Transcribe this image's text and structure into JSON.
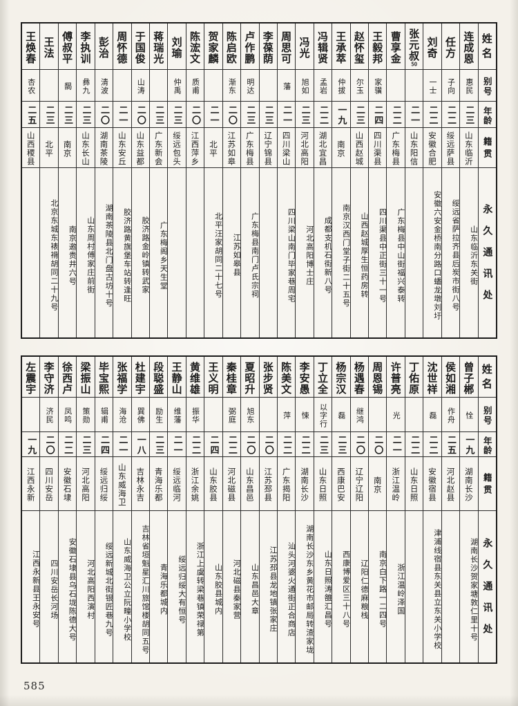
{
  "page": {
    "number": "585"
  },
  "headers": {
    "name": "姓名",
    "alias": "别号",
    "age": "年龄",
    "native_place": "籍贯",
    "address": "永久通讯处"
  },
  "tables": [
    {
      "id": "top",
      "entries": [
        {
          "name": "连成恩",
          "alias": "惠民",
          "age": "二三",
          "place": "山东临沂",
          "address": "山东临沂东关街"
        },
        {
          "name": "任方",
          "alias": "子向",
          "age": "二二",
          "place": "绥远萨县",
          "address": "绥远省萨拉齐县后炭市街八号"
        },
        {
          "name": "刘奇",
          "alias": "一士",
          "age": "二二",
          "place": "安徽合肥",
          "address": "安徽六安金桥南分路口蟠龙墩刘圩"
        },
        {
          "name": "张元叔",
          "annotation": "50",
          "alias": "",
          "age": "二一",
          "place": "山东阳信",
          "address": ""
        },
        {
          "name": "曹享金",
          "alias": "",
          "age": "二二",
          "place": "广东梅县",
          "address": "广东梅县中山街福兴泰转"
        },
        {
          "name": "王毅邦",
          "alias": "家骥",
          "age": "二四",
          "place": "四川渠县",
          "address": "四川渠县中正街三十一号"
        },
        {
          "name": "赵怀玺",
          "alias": "尔玉",
          "age": "二三",
          "place": "山西赵城",
          "address": "山西赵城厚生恒药房转"
        },
        {
          "name": "王承萃",
          "alias": "仲拔",
          "age": "一九",
          "place": "南京",
          "address": "南京汉西门堂子街二十五号"
        },
        {
          "name": "冯辑贤",
          "alias": "孟岩",
          "age": "二二",
          "place": "湖北宜昌",
          "address": "成都支机石街新八号"
        },
        {
          "name": "冯光",
          "alias": "旭如",
          "age": "二三",
          "place": "河北高阳",
          "address": "河北高阳博士庄"
        },
        {
          "name": "周思可",
          "alias": "藩",
          "age": "二一",
          "place": "四川梁山",
          "address": "四川梁山南门毕家巷周宅"
        },
        {
          "name": "李葆荫",
          "alias": "",
          "age": "二三",
          "place": "辽宁锦县",
          "address": ""
        },
        {
          "name": "卢作鹏",
          "alias": "明达",
          "age": "二三",
          "place": "广东梅县",
          "address": "广东梅县南门卢氏宗祠"
        },
        {
          "name": "陈启欧",
          "alias": "渐东",
          "age": "二〇",
          "place": "江苏如皋",
          "address": "江苏如皋县"
        },
        {
          "name": "贺家麟",
          "alias": "",
          "age": "二一",
          "place": "北平",
          "address": "北平汪家胡同二十七号"
        },
        {
          "name": "陈浤文",
          "alias": "质甫",
          "age": "二〇",
          "place": "江西萍乡",
          "address": ""
        },
        {
          "name": "刘瑜",
          "alias": "仲禹",
          "age": "二三",
          "place": "绥远包头",
          "address": ""
        },
        {
          "name": "蒋瑞光",
          "alias": "",
          "age": "二三",
          "place": "广东新会",
          "address": "广东梅阁乡天生堂"
        },
        {
          "name": "于国俊",
          "alias": "山涛",
          "age": "二〇",
          "place": "山东益都",
          "address": "胶济路金岭镇转武家"
        },
        {
          "name": "周怀德",
          "alias": "",
          "age": "二一",
          "place": "山东安丘",
          "address": "胶济路黄旗堡车站转逢旺"
        },
        {
          "name": "彭治",
          "alias": "清波",
          "age": "二〇",
          "place": "湖南茶陵",
          "address": "湖南茶陵县北门盘古坊十号"
        },
        {
          "name": "李执训",
          "alias": "彝九",
          "age": "二三",
          "place": "山东长山",
          "address": "山东周村傅家庄前街"
        },
        {
          "name": "傅叔平",
          "alias": "馤",
          "age": "二三",
          "place": "南京",
          "address": "南京邀贵井六号"
        },
        {
          "name": "王法",
          "alias": "",
          "age": "二三",
          "place": "北平",
          "address": "北京东城东裱褙胡同二十九号"
        },
        {
          "name": "王焕春",
          "alias": "杏农",
          "age": "二五",
          "place": "山西稷县",
          "address": ""
        }
      ]
    },
    {
      "id": "bottom",
      "entries": [
        {
          "name": "曾子郴",
          "alias": "恮",
          "age": "一九",
          "place": "湖南长沙",
          "address": "湖南长沙贺家塘敦仁里十号"
        },
        {
          "name": "侯如湘",
          "alias": "作舟",
          "age": "二五",
          "place": "河北赵县",
          "address": ""
        },
        {
          "name": "沈世祥",
          "alias": "磊",
          "age": "二二",
          "place": "安徽宿县",
          "address": "津浦线宿县东关县立东关小学校"
        },
        {
          "name": "丁佑原",
          "alias": "",
          "age": "二二",
          "place": "山东日照",
          "address": ""
        },
        {
          "name": "许普亮",
          "alias": "光",
          "age": "二一",
          "place": "浙江温岭",
          "address": "浙江温岭泽国"
        },
        {
          "name": "周恩锡",
          "alias": "",
          "age": "二〇",
          "place": "南京",
          "address": "南京白下路一二四号"
        },
        {
          "name": "杨遇春",
          "alias": "继鸿",
          "age": "二〇",
          "place": "辽宁辽阳",
          "address": "辽阳仁德麻粮栈"
        },
        {
          "name": "杨宗汉",
          "alias": "磊",
          "age": "二三",
          "place": "西康巴安",
          "address": "西康博爱区三十八号"
        },
        {
          "name": "丁立全",
          "alias": "以字行",
          "age": "二三",
          "place": "山东日照",
          "address": "山东日照涛雒汇昌号"
        },
        {
          "name": "李安愚",
          "alias": "悚",
          "age": "二二",
          "place": "湖南长沙",
          "address": "湖南长沙东乡黄花市邮局转渣家垅"
        },
        {
          "name": "陈美文",
          "alias": "萍",
          "age": "二二",
          "place": "广东揭阳",
          "address": "汕头河婆火通街正合商店"
        },
        {
          "name": "张步贤",
          "alias": "",
          "age": "二〇",
          "place": "江苏邳县",
          "address": "江苏邳县龙地镇张家庄"
        },
        {
          "name": "夏昭升",
          "alias": "旭东",
          "age": "二〇",
          "place": "山东昌邑",
          "address": "山东昌邑大章"
        },
        {
          "name": "秦桂章",
          "alias": "弼庭",
          "age": "二二",
          "place": "河北磁县",
          "address": "河北磁县秦家营"
        },
        {
          "name": "王义明",
          "alias": "",
          "age": "二四",
          "place": "山东胶县",
          "address": "山东胶县城内"
        },
        {
          "name": "黄维雄",
          "alias": "振华",
          "age": "二二",
          "place": "浙江余姚",
          "address": "浙江上虞转梁巷镇荣禄第"
        },
        {
          "name": "王静山",
          "alias": "维藩",
          "age": "二一",
          "place": "绥远临河",
          "address": "绥远归绥大有恒号"
        },
        {
          "name": "段聪盛",
          "alias": "励生",
          "age": "二三",
          "place": "青海乐都",
          "address": "青海乐都城内"
        },
        {
          "name": "杜建宇",
          "alias": "巽佛",
          "age": "一八",
          "place": "吉林永吉",
          "address": "吉林省垣魁星汇川旅馆楼胡同五号"
        },
        {
          "name": "张福学",
          "alias": "海沧",
          "age": "二一",
          "place": "山东威海卫",
          "address": "山东威海卫公立阮疃小学校"
        },
        {
          "name": "毕宝熙",
          "alias": "辑甫",
          "age": "二四",
          "place": "绥远归绥",
          "address": "绥远新城北街银匠巷九号"
        },
        {
          "name": "梁振山",
          "alias": "策勋",
          "age": "二三",
          "place": "河北高阳",
          "address": "河北高阳西演村"
        },
        {
          "name": "徐西卢",
          "alias": "凤鸣",
          "age": "二二",
          "place": "安徽石埭",
          "address": "安徽石埭县乌石垅陈德大号"
        },
        {
          "name": "李守济",
          "alias": "济民",
          "age": "二〇",
          "place": "四川安岳",
          "address": "四川安岳长河场"
        },
        {
          "name": "左震宇",
          "alias": "",
          "age": "一九",
          "place": "江西永新",
          "address": "江西永新县王永安号"
        }
      ]
    }
  ]
}
